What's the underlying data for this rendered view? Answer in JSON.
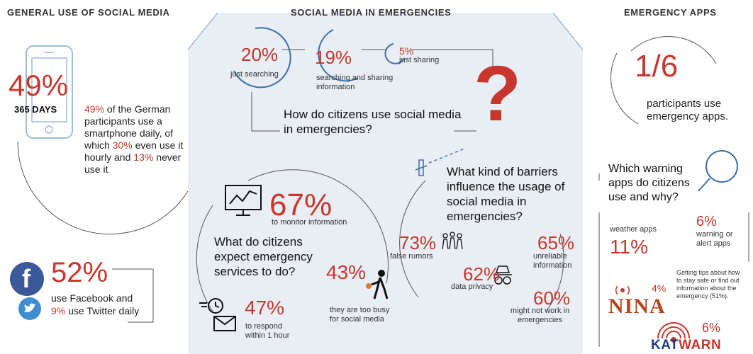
{
  "headers": {
    "general": "GENERAL USE OF SOCIAL MEDIA",
    "emergencies": "SOCIAL MEDIA IN EMERGENCIES",
    "apps": "EMERGENCY APPS"
  },
  "general": {
    "big_pct": "49%",
    "days": "365 DAYS",
    "smartphone_text": [
      {
        "t": "49%",
        "red": true
      },
      {
        "t": " of the German participants use a smartphone daily, of which ",
        "red": false
      },
      {
        "t": "30%",
        "red": true
      },
      {
        "t": " even use it hourly and ",
        "red": false
      },
      {
        "t": "13%",
        "red": true
      },
      {
        "t": " never use it",
        "red": false
      }
    ],
    "facebook_pct": "52%",
    "facebook_line1": "use Facebook and",
    "facebook_line2": "9% use Twitter daily"
  },
  "emergencies": {
    "searching_pct": "20%",
    "searching_label": "just searching",
    "search_share_pct": "19%",
    "search_share_label": "searching and sharing information",
    "sharing_pct": "5%",
    "sharing_label": "just sharing",
    "question1": "How do citizens use social media in emergencies?",
    "question_mark": "?",
    "expect_question": "What do citizens expect emergency services to do?",
    "monitor_pct": "67%",
    "monitor_label": "to monitor information",
    "busy_pct": "43%",
    "busy_label": "they are too busy for social media",
    "respond_pct": "47%",
    "respond_label": "to respond within 1 hour",
    "barriers_question": "What kind of barriers influence the usage of social media in emergencies?",
    "rumors_pct": "73%",
    "rumors_label": "false rumors",
    "unreliable_pct": "65%",
    "unreliable_label": "unreliable information",
    "privacy_pct": "62%",
    "privacy_label": "data privacy",
    "notwork_pct": "60%",
    "notwork_label": "might not work in emergencies"
  },
  "apps": {
    "fraction": "1/6",
    "participants_text": "participants use emergency apps.",
    "which_question": "Which warning apps do citizens use and why?",
    "weather_label": "weather apps",
    "weather_pct": "11%",
    "warning_pct": "6%",
    "warning_label": "warning or alert apps",
    "tips_text": "Getting tips about how to stay safe or find out information about the emergency (51%).",
    "nina_pct": "4%",
    "nina_logo": "NINA",
    "katwarn_pct": "6%",
    "katwarn_logo": "KATWARN"
  },
  "colors": {
    "accent_red": "#c8372d",
    "icon_blue": "#3a6fb0",
    "facebook_blue": "#3b5998",
    "twitter_blue": "#3d8fd1",
    "center_panel": "#e9eef4"
  },
  "icons": [
    "smartphone-icon",
    "facebook-icon",
    "twitter-icon",
    "chart-monitor-icon",
    "stopwatch-icon",
    "envelope-icon",
    "person-phone-icon",
    "crowd-icon",
    "spy-icon",
    "signal-tower-icon",
    "magnifier-icon",
    "nina-radio-icon",
    "katwarn-radio-icon"
  ]
}
